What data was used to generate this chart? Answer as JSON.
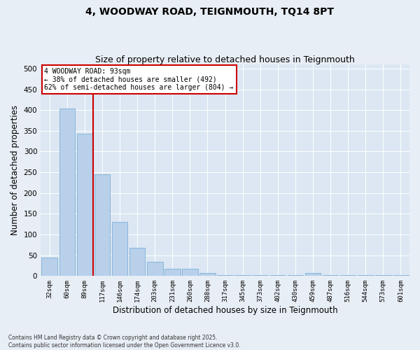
{
  "title": "4, WOODWAY ROAD, TEIGNMOUTH, TQ14 8PT",
  "subtitle": "Size of property relative to detached houses in Teignmouth",
  "xlabel": "Distribution of detached houses by size in Teignmouth",
  "ylabel": "Number of detached properties",
  "bar_labels": [
    "32sqm",
    "60sqm",
    "89sqm",
    "117sqm",
    "146sqm",
    "174sqm",
    "203sqm",
    "231sqm",
    "260sqm",
    "288sqm",
    "317sqm",
    "345sqm",
    "373sqm",
    "402sqm",
    "430sqm",
    "459sqm",
    "487sqm",
    "516sqm",
    "544sqm",
    "573sqm",
    "601sqm"
  ],
  "bar_values": [
    45,
    403,
    343,
    245,
    130,
    68,
    35,
    17,
    17,
    8,
    3,
    3,
    3,
    3,
    3,
    8,
    3,
    3,
    3,
    3,
    3
  ],
  "bar_color": "#b8d0ea",
  "bar_edgecolor": "#6ea8d0",
  "vline_color": "#cc0000",
  "annotation_text": "4 WOODWAY ROAD: 93sqm\n← 38% of detached houses are smaller (492)\n62% of semi-detached houses are larger (804) →",
  "annotation_box_color": "#ffffff",
  "annotation_box_edgecolor": "#cc0000",
  "ylim": [
    0,
    510
  ],
  "yticks": [
    0,
    50,
    100,
    150,
    200,
    250,
    300,
    350,
    400,
    450,
    500
  ],
  "title_fontsize": 10,
  "subtitle_fontsize": 9,
  "xlabel_fontsize": 8.5,
  "ylabel_fontsize": 8.5,
  "footnote": "Contains HM Land Registry data © Crown copyright and database right 2025.\nContains public sector information licensed under the Open Government Licence v3.0.",
  "bg_color": "#e8eef5",
  "plot_bg_color": "#dce7f3"
}
